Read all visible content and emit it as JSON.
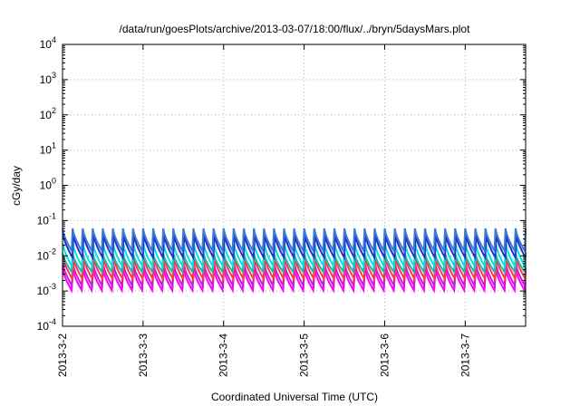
{
  "chart_data": {
    "type": "line",
    "title": "/data/run/goesPlots/archive/2013-03-07/18:00/flux/../bryn/5daysMars.plot",
    "xlabel": "Coordinated Universal Time (UTC)",
    "ylabel": "cGy/day",
    "y_scale": "log",
    "ylim_exponents": [
      -4,
      4
    ],
    "y_tick_base": "10",
    "y_tick_exponents": [
      "-4",
      "-3",
      "-2",
      "-1",
      "0",
      "1",
      "2",
      "3",
      "4"
    ],
    "x_range": [
      "2013-03-02",
      "2013-03-07T18:00"
    ],
    "x_tick_labels": [
      "2013-3-2",
      "2013-3-3",
      "2013-3-4",
      "2013-3-5",
      "2013-3-6",
      "2013-3-7"
    ],
    "grid": true,
    "legend": "none",
    "oscillation_cycles_per_day": 8,
    "series": [
      {
        "color": "#ff00ff",
        "peak": 0.0045,
        "trough": 0.00105
      },
      {
        "color": "#c81ed2",
        "peak": 0.006,
        "trough": 0.0014
      },
      {
        "color": "#ff3a3a",
        "peak": 0.009,
        "trough": 0.0022
      },
      {
        "color": "#1fb5b5",
        "peak": 0.012,
        "trough": 0.0035
      },
      {
        "color": "#00e0e0",
        "peak": 0.022,
        "trough": 0.005
      },
      {
        "color": "#2233cc",
        "peak": 0.04,
        "trough": 0.009
      },
      {
        "color": "#3a7bd5",
        "peak": 0.06,
        "trough": 0.014
      }
    ]
  }
}
